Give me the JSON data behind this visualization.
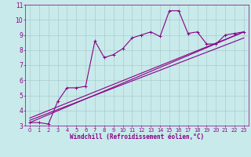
{
  "xlabel": "Windchill (Refroidissement éolien,°C)",
  "bg_color": "#c8eaea",
  "line_color": "#880088",
  "grid_color": "#aacccc",
  "x_data": [
    0,
    1,
    2,
    3,
    4,
    5,
    6,
    7,
    8,
    9,
    10,
    11,
    12,
    13,
    14,
    15,
    16,
    17,
    18,
    19,
    20,
    21,
    22,
    23
  ],
  "y_zigzag": [
    3.2,
    3.2,
    3.1,
    4.6,
    5.5,
    5.5,
    5.6,
    8.6,
    7.5,
    7.7,
    8.1,
    8.8,
    9.0,
    9.2,
    8.9,
    10.6,
    10.6,
    9.1,
    9.2,
    8.4,
    8.4,
    9.0,
    9.1,
    9.2
  ],
  "trend1_x": [
    0,
    23
  ],
  "trend1_y": [
    3.2,
    9.2
  ],
  "trend2_x": [
    0,
    23
  ],
  "trend2_y": [
    3.35,
    8.8
  ],
  "trend3_x": [
    0,
    23
  ],
  "trend3_y": [
    3.5,
    9.2
  ],
  "xlim": [
    -0.5,
    23.5
  ],
  "ylim": [
    3,
    11
  ],
  "yticks": [
    3,
    4,
    5,
    6,
    7,
    8,
    9,
    10,
    11
  ],
  "xticks": [
    0,
    1,
    2,
    3,
    4,
    5,
    6,
    7,
    8,
    9,
    10,
    11,
    12,
    13,
    14,
    15,
    16,
    17,
    18,
    19,
    20,
    21,
    22,
    23
  ],
  "xlabel_fontsize": 5.5,
  "tick_fontsize": 4.8,
  "ytick_fontsize": 5.5
}
